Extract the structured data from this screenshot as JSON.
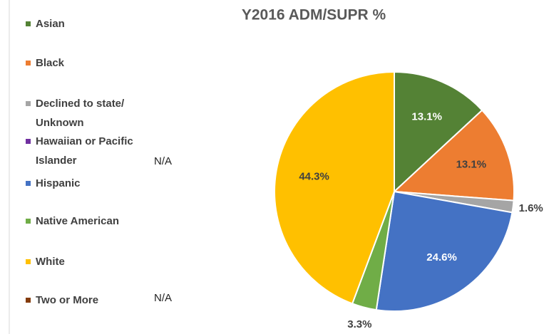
{
  "chart_data": {
    "type": "pie",
    "title": "Y2016 ADM/SUPR %",
    "categories": [
      "Asian",
      "Black",
      "Declined to state/ Unknown",
      "Hawaiian or Pacific Islander",
      "Hispanic",
      "Native American",
      "White",
      "Two or More"
    ],
    "values": [
      13.1,
      13.1,
      1.6,
      null,
      24.6,
      3.3,
      44.3,
      null
    ],
    "value_labels": [
      "13.1%",
      "13.1%",
      "1.6%",
      "N/A",
      "24.6%",
      "3.3%",
      "44.3%",
      "N/A"
    ],
    "colors": [
      "#548235",
      "#ed7d31",
      "#a5a5a5",
      "#7030a0",
      "#4472c4",
      "#70ad47",
      "#ffc000",
      "#843c0c"
    ],
    "legend": "left"
  }
}
